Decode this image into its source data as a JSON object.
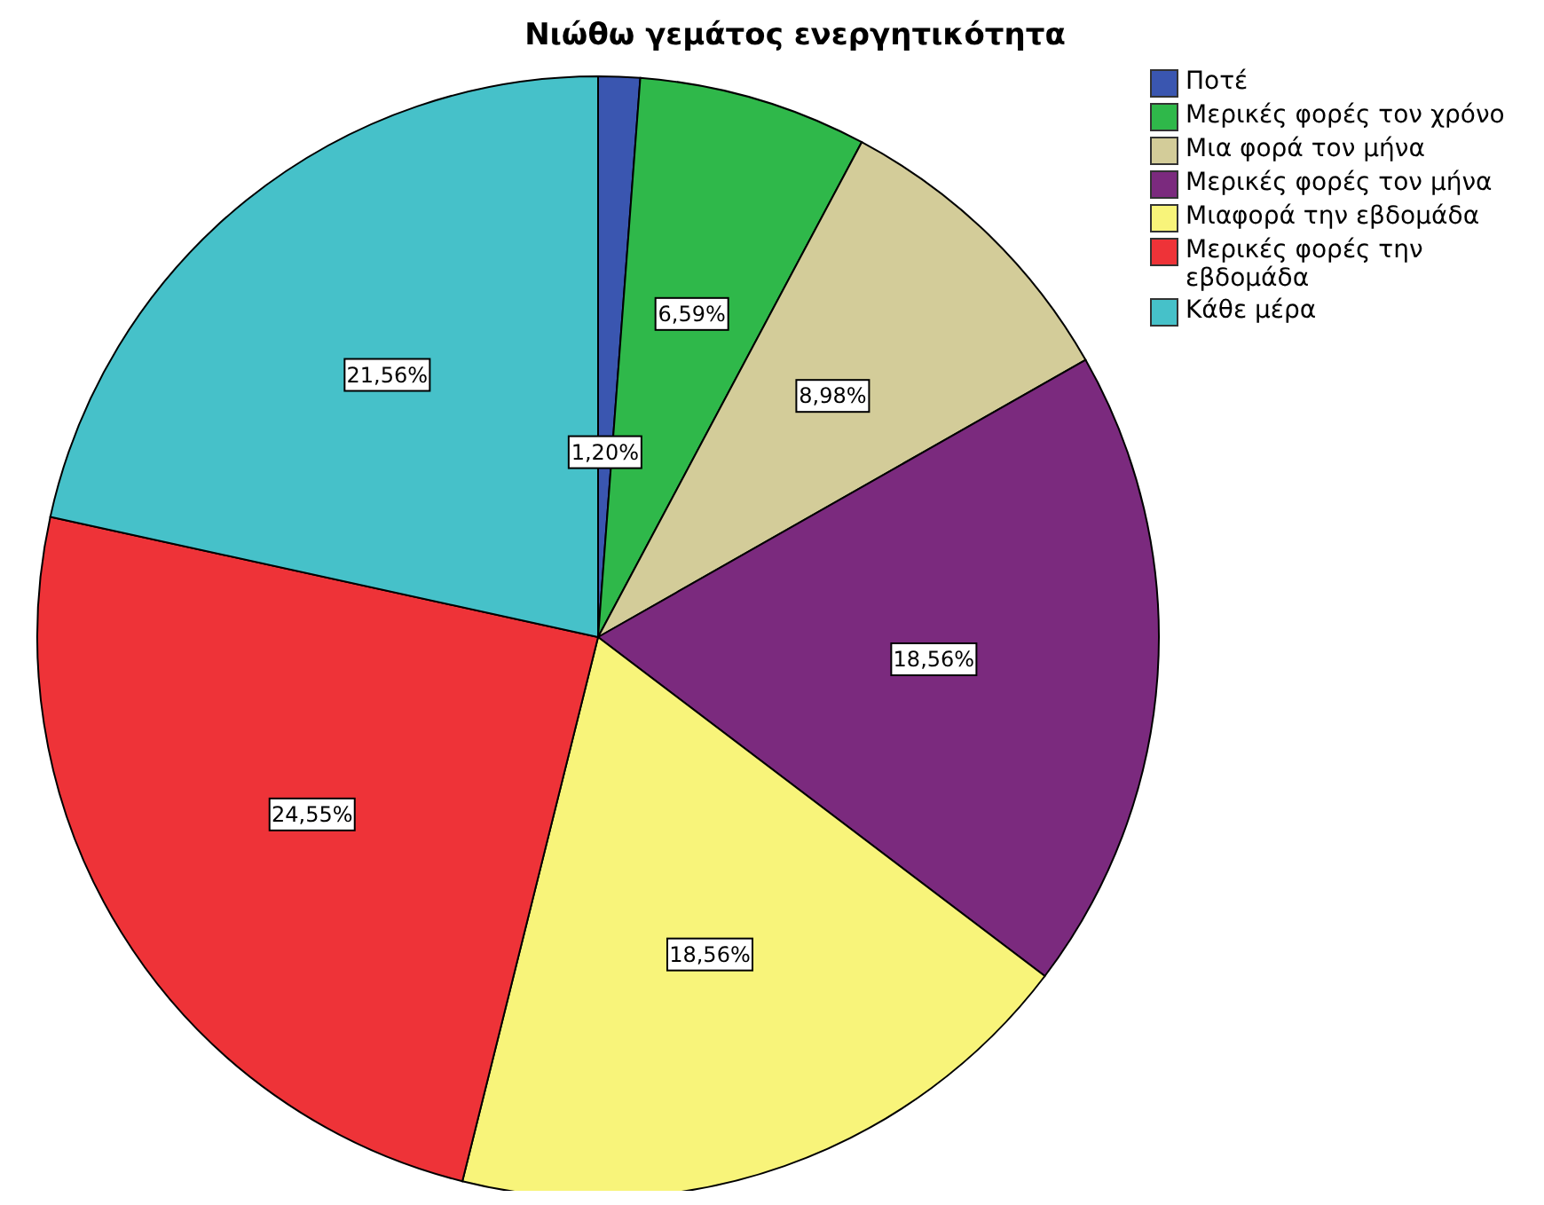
{
  "chart_data": {
    "type": "pie",
    "title": "Νιώθω γεμάτος ενεργητικότητα",
    "categories": [
      "Ποτέ",
      "Μερικές φορές τον χρόνο",
      "Μια φορά τον μήνα",
      "Μερικές φορές τον μήνα",
      "Μιαφορά την εβδομάδα",
      "Μερικές φορές την εβδομάδα",
      "Κάθε μέρα"
    ],
    "values": [
      1.2,
      6.59,
      8.98,
      18.56,
      18.56,
      24.55,
      21.56
    ],
    "value_labels": [
      "1,20%",
      "6,59%",
      "8,98%",
      "18,56%",
      "18,56%",
      "24,55%",
      "21,56%"
    ],
    "colors": [
      "#3a56b0",
      "#2fb84a",
      "#d3cc99",
      "#7b2a7e",
      "#f8f47a",
      "#ee3338",
      "#46c1c9"
    ],
    "legend": "top right"
  }
}
